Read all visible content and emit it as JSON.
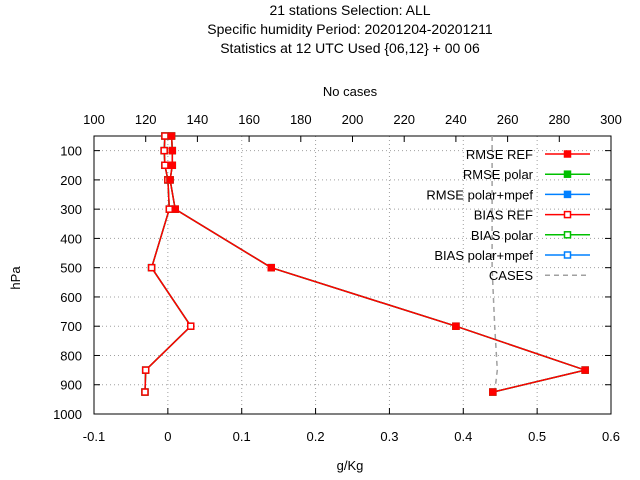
{
  "title_lines": [
    "21 stations Selection: ALL",
    "Specific humidity  Period: 20201204-20201211",
    "Statistics at 12 UTC  Used {06,12} + 00 06"
  ],
  "chart_data": {
    "type": "line",
    "xlabel": "g/Kg",
    "ylabel": "hPa",
    "x2label": "No cases",
    "xlim": [
      -0.1,
      0.6
    ],
    "ylim": [
      1000,
      50
    ],
    "x2lim": [
      100,
      300
    ],
    "xticks": [
      "-0.1",
      "0",
      "0.1",
      "0.2",
      "0.3",
      "0.4",
      "0.5",
      "0.6"
    ],
    "yticks": [
      "100",
      "200",
      "300",
      "400",
      "500",
      "600",
      "700",
      "800",
      "900",
      "1000"
    ],
    "x2ticks": [
      "100",
      "120",
      "140",
      "160",
      "180",
      "200",
      "220",
      "240",
      "260",
      "280",
      "300"
    ],
    "grid": true,
    "legend_position": "top-right",
    "pressure_levels": [
      50,
      100,
      150,
      200,
      300,
      500,
      700,
      850,
      925
    ],
    "series": [
      {
        "name": "RMSE REF",
        "color": "#ff0000",
        "marker": "filled-square",
        "style": "solid",
        "axis": "bottom",
        "x": [
          0.005,
          0.006,
          0.006,
          0.003,
          0.01,
          0.14,
          0.39,
          0.565,
          0.44
        ],
        "y": [
          50,
          100,
          150,
          200,
          300,
          500,
          700,
          850,
          925
        ]
      },
      {
        "name": "RMSE polar",
        "color": "#00c000",
        "marker": "filled-square",
        "style": "solid",
        "axis": "bottom",
        "x": [
          0.005,
          0.006,
          0.006,
          0.003,
          0.01,
          0.14,
          0.39,
          0.565,
          0.44
        ],
        "y": [
          50,
          100,
          150,
          200,
          300,
          500,
          700,
          850,
          925
        ]
      },
      {
        "name": "RMSE polar+mpef",
        "color": "#0080ff",
        "marker": "filled-square",
        "style": "solid",
        "axis": "bottom",
        "x": [
          0.005,
          0.006,
          0.006,
          0.003,
          0.01,
          0.14,
          0.39,
          0.565,
          0.44
        ],
        "y": [
          50,
          100,
          150,
          200,
          300,
          500,
          700,
          850,
          925
        ]
      },
      {
        "name": "BIAS REF",
        "color": "#ff0000",
        "marker": "open-square",
        "style": "solid",
        "axis": "bottom",
        "x": [
          -0.004,
          -0.005,
          -0.004,
          0.0,
          0.002,
          -0.022,
          0.031,
          -0.03,
          -0.031
        ],
        "y": [
          50,
          100,
          150,
          200,
          300,
          500,
          700,
          850,
          925
        ]
      },
      {
        "name": "BIAS polar",
        "color": "#00c000",
        "marker": "open-square",
        "style": "solid",
        "axis": "bottom",
        "x": [
          -0.004,
          -0.005,
          -0.004,
          0.0,
          0.002,
          -0.022,
          0.031,
          -0.03,
          -0.031
        ],
        "y": [
          50,
          100,
          150,
          200,
          300,
          500,
          700,
          850,
          925
        ]
      },
      {
        "name": "BIAS polar+mpef",
        "color": "#0080ff",
        "marker": "open-square",
        "style": "solid",
        "axis": "bottom",
        "x": [
          -0.004,
          -0.005,
          -0.004,
          0.0,
          0.002,
          -0.022,
          0.031,
          -0.03,
          -0.031
        ],
        "y": [
          50,
          100,
          150,
          200,
          300,
          500,
          700,
          850,
          925
        ]
      },
      {
        "name": "CASES",
        "color": "#a0a0a0",
        "marker": "none",
        "style": "dashed",
        "axis": "top",
        "x": [
          254,
          254,
          254,
          254,
          254,
          254,
          255,
          256,
          255
        ],
        "y": [
          50,
          100,
          150,
          200,
          300,
          500,
          700,
          850,
          925
        ]
      }
    ]
  }
}
